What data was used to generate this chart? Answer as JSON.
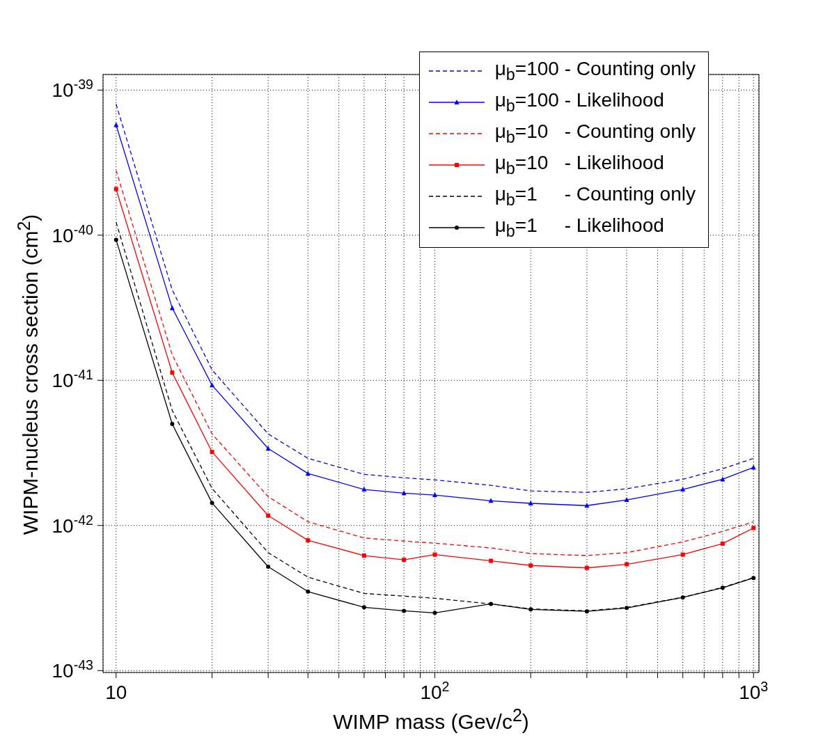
{
  "chart_data": {
    "type": "line",
    "xlabel": "WIMP mass (Gev/c$^{2}$)",
    "ylabel": "WIPM-nucleus cross section (cm$^{2}$)",
    "log": "xy",
    "grid": true,
    "legend": "top right",
    "x": [
      10,
      15,
      20,
      30,
      40,
      60,
      80,
      100,
      150,
      200,
      300,
      400,
      600,
      800,
      1000
    ],
    "xlim": [
      9.1,
      1040
    ],
    "ylim": [
      9.7e-44,
      1.28e-39
    ],
    "xticks": [
      {
        "value": 10,
        "label": "10"
      },
      {
        "value": 20,
        "label": null
      },
      {
        "value": 30,
        "label": null
      },
      {
        "value": 40,
        "label": null
      },
      {
        "value": 50,
        "label": null
      },
      {
        "value": 60,
        "label": null
      },
      {
        "value": 70,
        "label": null
      },
      {
        "value": 80,
        "label": null
      },
      {
        "value": 90,
        "label": null
      },
      {
        "value": 100,
        "label": "10$^{2}$"
      },
      {
        "value": 200,
        "label": null
      },
      {
        "value": 300,
        "label": null
      },
      {
        "value": 400,
        "label": null
      },
      {
        "value": 500,
        "label": null
      },
      {
        "value": 600,
        "label": null
      },
      {
        "value": 700,
        "label": null
      },
      {
        "value": 800,
        "label": null
      },
      {
        "value": 900,
        "label": null
      },
      {
        "value": 1000,
        "label": "10$^{3}$"
      }
    ],
    "yticks": [
      {
        "value": 1e-43,
        "label": "10$^{-43}$"
      },
      {
        "value": 1e-42,
        "label": "10$^{-42}$"
      },
      {
        "value": 1e-41,
        "label": "10$^{-41}$"
      },
      {
        "value": 1e-40,
        "label": "10$^{-40}$"
      },
      {
        "value": 1e-39,
        "label": "10$^{-39}$"
      }
    ],
    "series": [
      {
        "name": "μ$_{b}$=100 - Counting only",
        "color": "#0000ff",
        "line_style": "dashed",
        "marker": "none",
        "values": [
          8e-40,
          4.2e-41,
          1.18e-41,
          4.27e-42,
          2.9e-42,
          2.25e-42,
          2.13e-42,
          2.06e-42,
          1.89e-42,
          1.73e-42,
          1.69e-42,
          1.79e-42,
          2.08e-42,
          2.46e-42,
          2.9e-42
        ]
      },
      {
        "name": "μ$_{b}$=100 - Likelihood",
        "color": "#0000ff",
        "line_style": "solid",
        "marker": "triangle",
        "values": [
          5.75e-40,
          3.15e-41,
          9.25e-42,
          3.39e-42,
          2.28e-42,
          1.77e-42,
          1.67e-42,
          1.62e-42,
          1.48e-42,
          1.42e-42,
          1.37e-42,
          1.5e-42,
          1.77e-42,
          2.08e-42,
          2.51e-42
        ]
      },
      {
        "name": "μ$_{b}$=10   - Counting only",
        "color": "#ff0000",
        "line_style": "dashed",
        "marker": "none",
        "values": [
          2.8e-40,
          1.5e-41,
          4.27e-42,
          1.58e-42,
          1.06e-42,
          8.2e-43,
          7.8e-43,
          7.55e-43,
          7e-43,
          6.4e-43,
          6.2e-43,
          6.5e-43,
          7.7e-43,
          9.1e-43,
          1.06e-42
        ]
      },
      {
        "name": "μ$_{b}$=10   - Likelihood",
        "color": "#ff0000",
        "line_style": "solid",
        "marker": "square",
        "values": [
          2.08e-40,
          1.13e-41,
          3.21e-42,
          1.17e-42,
          7.9e-43,
          6.2e-43,
          5.8e-43,
          6.3e-43,
          5.7e-43,
          5.3e-43,
          5.1e-43,
          5.4e-43,
          6.3e-43,
          7.5e-43,
          9.6e-43
        ]
      },
      {
        "name": "μ$_{b}$=1     - Counting only",
        "color": "#000000",
        "line_style": "dashed",
        "marker": "none",
        "values": [
          1.23e-40,
          6.2e-42,
          1.8e-42,
          6.5e-43,
          4.4e-43,
          3.4e-43,
          3.26e-43,
          3.15e-43,
          2.88e-43,
          2.66e-43,
          2.58e-43,
          2.72e-43,
          3.2e-43,
          3.74e-43,
          4.37e-43
        ]
      },
      {
        "name": "μ$_{b}$=1     - Likelihood",
        "color": "#000000",
        "line_style": "solid",
        "marker": "circle",
        "values": [
          9.3e-41,
          5e-42,
          1.43e-42,
          5.2e-43,
          3.5e-43,
          2.73e-43,
          2.58e-43,
          2.5e-43,
          2.88e-43,
          2.64e-43,
          2.56e-43,
          2.7e-43,
          3.19e-43,
          3.72e-43,
          4.35e-43
        ]
      }
    ]
  }
}
